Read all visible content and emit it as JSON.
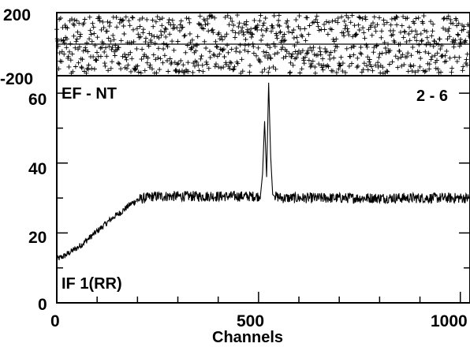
{
  "chart_data": [
    {
      "type": "scatter",
      "panel": "residuals",
      "ylim": [
        -200,
        200
      ],
      "xlim": [
        0,
        1024
      ],
      "y_tick_labels": [
        "200",
        "-200"
      ],
      "points": "random scatter of residuals between -200 and 200 across channels 0-1024, plotted as '+' markers",
      "grid": false
    },
    {
      "type": "line",
      "panel": "spectrum",
      "xlabel": "Channels",
      "ylabel": "",
      "xlim": [
        0,
        1024
      ],
      "ylim": [
        0,
        65
      ],
      "x_tick_labels": [
        "0",
        "500",
        "1000"
      ],
      "y_tick_labels": [
        "0",
        "20",
        "40",
        "60"
      ],
      "annotations": {
        "top_left": "EF - NT",
        "top_right": "2 - 6",
        "bottom_left": "IF 1(RR)"
      },
      "series": [
        {
          "x": [
            0,
            20,
            40,
            60,
            80,
            100,
            120,
            140,
            160,
            180,
            200,
            220,
            240,
            260,
            280,
            300,
            350,
            400,
            450,
            500,
            505,
            510,
            515,
            520,
            525,
            530,
            535,
            540,
            560,
            600,
            650,
            700,
            750,
            800,
            850,
            900,
            950,
            1000,
            1024
          ],
          "y": [
            12.5,
            13.5,
            15,
            16.5,
            18.5,
            20.5,
            22.5,
            24.5,
            26,
            28,
            29.5,
            30,
            30.5,
            30.5,
            30.5,
            30.5,
            30.5,
            30.5,
            30.5,
            30.5,
            31,
            37,
            52,
            36,
            63,
            42,
            31,
            30.5,
            30,
            30,
            30,
            30,
            30,
            30,
            30,
            30,
            30,
            30,
            30
          ]
        }
      ],
      "grid": false
    }
  ]
}
